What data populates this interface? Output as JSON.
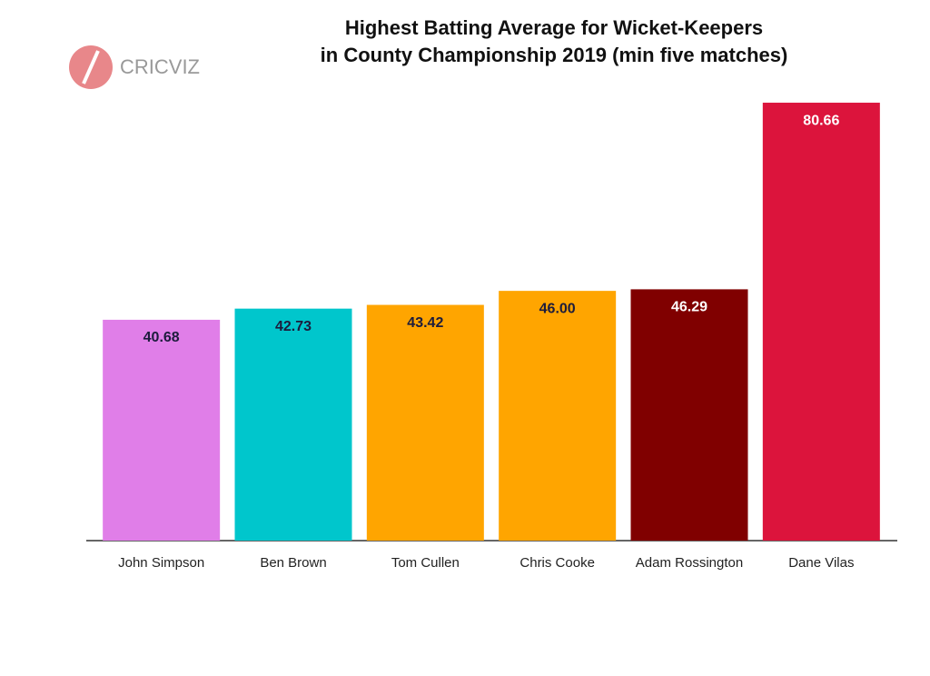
{
  "chart_data": {
    "type": "bar",
    "title": [
      "Highest Batting Average for Wicket-Keepers",
      "in County Championship 2019 (min five matches)"
    ],
    "logo": "CRICVIZ",
    "categories": [
      "John Simpson",
      "Ben Brown",
      "Tom Cullen",
      "Chris Cooke",
      "Adam Rossington",
      "Dane Vilas"
    ],
    "values": [
      40.68,
      42.73,
      43.42,
      46.0,
      46.29,
      80.66
    ],
    "value_labels": [
      "40.68",
      "42.73",
      "43.42",
      "46.00",
      "46.29",
      "80.66"
    ],
    "colors": [
      "#e07ee8",
      "#00c6cc",
      "#ffa500",
      "#ffa500",
      "#800000",
      "#dc143c"
    ],
    "value_label_colors": [
      "#1c1c3c",
      "#1c1c3c",
      "#1c1c3c",
      "#1c1c3c",
      "#ffffff",
      "#ffffff"
    ],
    "ylim": [
      0,
      81
    ]
  }
}
